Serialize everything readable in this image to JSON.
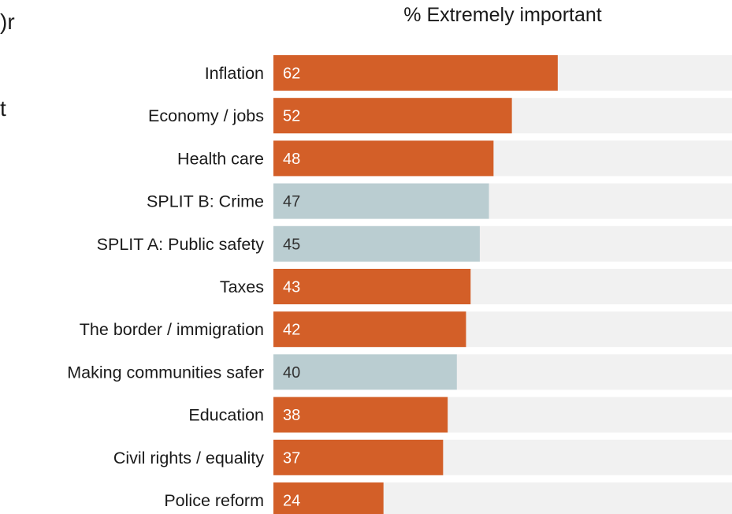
{
  "clipped_text": [
    ")r",
    "t"
  ],
  "chart_data": {
    "type": "bar",
    "orientation": "horizontal",
    "title": "% Extremely important",
    "xlim": [
      0,
      100
    ],
    "categories": [
      "Inflation",
      "Economy / jobs",
      "Health care",
      "SPLIT B: Crime",
      "SPLIT A: Public safety",
      "Taxes",
      "The border / immigration",
      "Making communities safer",
      "Education",
      "Civil rights / equality",
      "Police reform"
    ],
    "values": [
      62,
      52,
      48,
      47,
      45,
      43,
      42,
      40,
      38,
      37,
      24
    ],
    "highlight": [
      "main",
      "main",
      "main",
      "split",
      "split",
      "main",
      "main",
      "split",
      "main",
      "main",
      "main"
    ],
    "colors": {
      "main": "#d35f28",
      "split": "#bacdd1",
      "track": "#f1f1f1",
      "value_text_main": "#ffffff",
      "value_text_split": "#333333"
    }
  }
}
